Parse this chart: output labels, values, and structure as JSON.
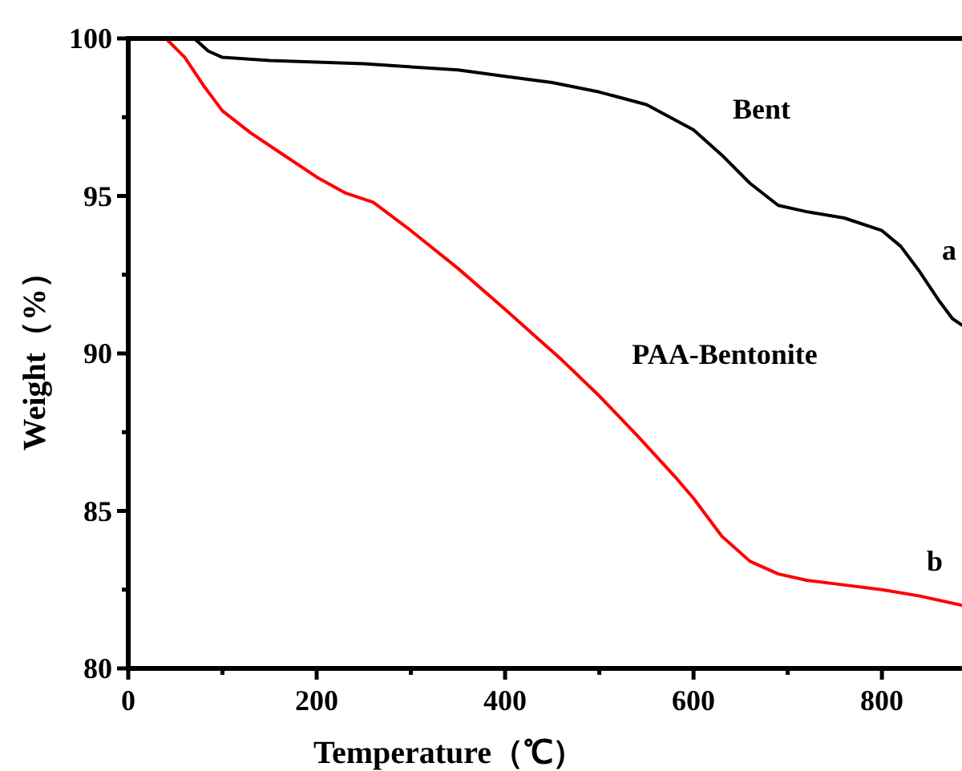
{
  "chart_data": {
    "type": "line",
    "xlabel": "Temperature（℃）",
    "ylabel": "Weight（%）",
    "xlim": [
      0,
      885
    ],
    "ylim": [
      80,
      100
    ],
    "xticks": [
      0,
      {
        "value": 100,
        "label": null
      },
      200,
      {
        "value": 300,
        "label": null
      },
      400,
      {
        "value": 500,
        "label": null
      },
      600,
      {
        "value": 700,
        "label": null
      },
      800
    ],
    "yticks": [
      80,
      {
        "value": 82.5,
        "label": null
      },
      85,
      {
        "value": 87.5,
        "label": null
      },
      90,
      {
        "value": 92.5,
        "label": null
      },
      95,
      {
        "value": 97.5,
        "label": null
      },
      100
    ],
    "line_style": "solid",
    "marker": "none",
    "grid": false,
    "series": [
      {
        "color": "#000000",
        "x": [
          0,
          70,
          85,
          100,
          150,
          200,
          250,
          300,
          350,
          400,
          450,
          500,
          550,
          600,
          630,
          660,
          690,
          720,
          760,
          800,
          820,
          840,
          860,
          875,
          885
        ],
        "values": [
          100,
          100,
          99.6,
          99.4,
          99.3,
          99.25,
          99.2,
          99.1,
          99.0,
          98.8,
          98.6,
          98.3,
          97.9,
          97.1,
          96.3,
          95.4,
          94.7,
          94.5,
          94.3,
          93.9,
          93.4,
          92.6,
          91.7,
          91.1,
          90.9
        ]
      },
      {
        "color": "#ff0000",
        "x": [
          0,
          40,
          60,
          80,
          100,
          130,
          160,
          200,
          230,
          260,
          300,
          350,
          400,
          430,
          460,
          500,
          540,
          580,
          600,
          630,
          660,
          690,
          720,
          760,
          800,
          840,
          885
        ],
        "values": [
          100,
          100,
          99.4,
          98.5,
          97.7,
          97.0,
          96.4,
          95.6,
          95.1,
          94.8,
          93.9,
          92.7,
          91.4,
          90.6,
          89.8,
          88.65,
          87.4,
          86.1,
          85.4,
          84.2,
          83.4,
          83.0,
          82.8,
          82.65,
          82.5,
          82.3,
          82.0
        ]
      }
    ],
    "annotations": [
      "Bent",
      "a",
      "PAA-Bentonite",
      "b"
    ]
  }
}
